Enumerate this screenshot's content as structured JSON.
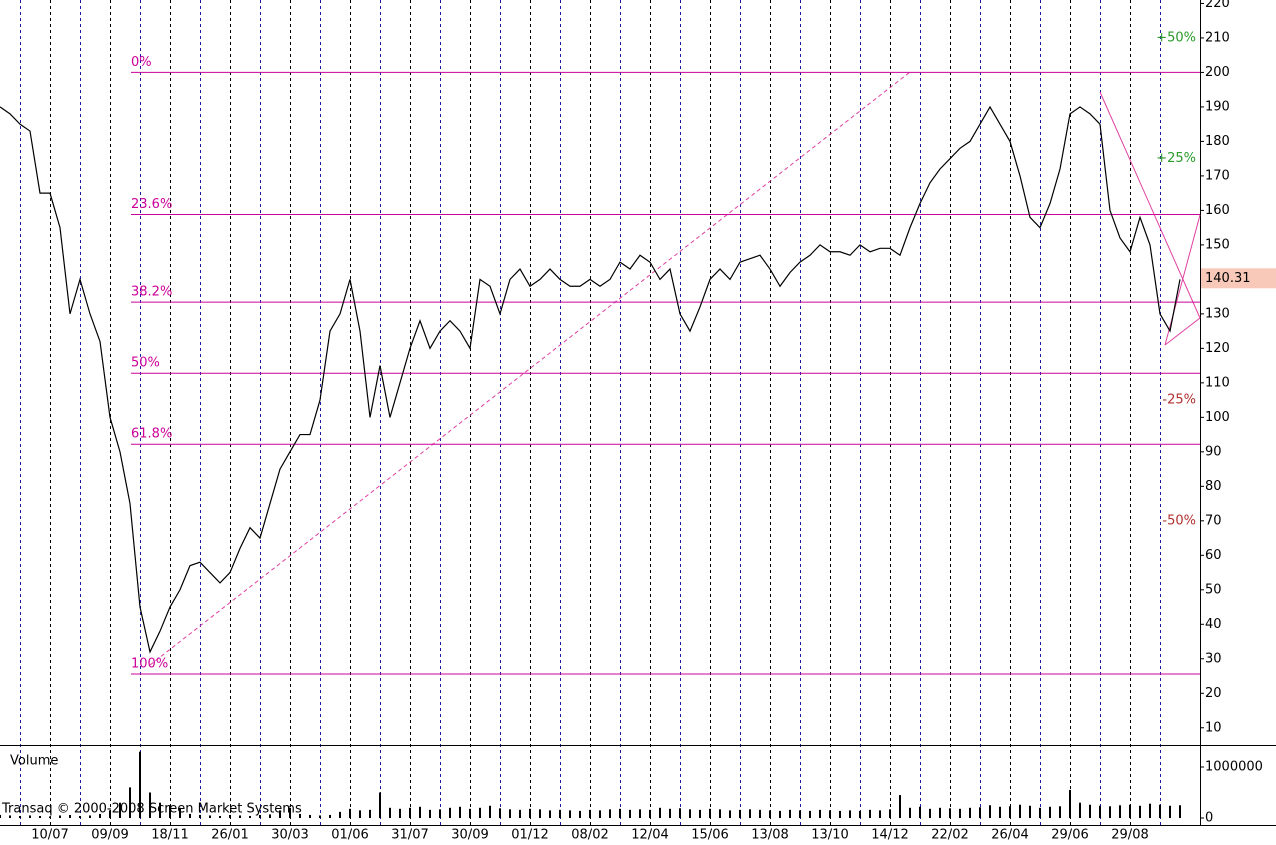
{
  "chart_data": {
    "type": "line",
    "ylim": [
      5,
      221
    ],
    "yticks": [
      10,
      20,
      30,
      40,
      50,
      60,
      70,
      80,
      90,
      100,
      110,
      120,
      130,
      140,
      150,
      160,
      170,
      180,
      190,
      200,
      210,
      220
    ],
    "categories": [
      null,
      null,
      null,
      null,
      null,
      "10/07",
      null,
      null,
      null,
      null,
      null,
      "09/09",
      null,
      null,
      null,
      null,
      null,
      "18/11",
      null,
      null,
      null,
      null,
      null,
      "26/01",
      null,
      null,
      null,
      null,
      null,
      "30/03",
      null,
      null,
      null,
      null,
      null,
      "01/06",
      null,
      null,
      null,
      null,
      null,
      "31/07",
      null,
      null,
      null,
      null,
      null,
      "30/09",
      null,
      null,
      null,
      null,
      null,
      "01/12",
      null,
      null,
      null,
      null,
      null,
      "08/02",
      null,
      null,
      null,
      null,
      null,
      "12/04",
      null,
      null,
      null,
      null,
      null,
      "15/06",
      null,
      null,
      null,
      null,
      null,
      "13/08",
      null,
      null,
      null,
      null,
      null,
      "13/10",
      null,
      null,
      null,
      null,
      null,
      "14/12",
      null,
      null,
      null,
      null,
      null,
      "22/02",
      null,
      null,
      null,
      null,
      null,
      "26/04",
      null,
      null,
      null,
      null,
      null,
      "29/06",
      null,
      null,
      null,
      null,
      null,
      "29/08",
      null,
      null,
      null,
      null,
      null
    ],
    "series": [
      {
        "color": "#000000",
        "values": [
          190,
          188,
          185,
          183,
          165,
          165,
          155,
          130,
          140,
          130,
          122,
          100,
          90,
          75,
          45,
          32,
          38,
          45,
          50,
          57,
          58,
          55,
          52,
          55,
          62,
          68,
          65,
          75,
          85,
          90,
          95,
          95,
          105,
          125,
          130,
          140,
          125,
          100,
          115,
          100,
          110,
          120,
          128,
          120,
          125,
          128,
          125,
          120,
          140,
          138,
          130,
          140,
          143,
          138,
          140,
          143,
          140,
          138,
          138,
          140,
          138,
          140,
          145,
          143,
          147,
          145,
          140,
          143,
          130,
          125,
          132,
          140,
          143,
          140,
          145,
          146,
          147,
          143,
          138,
          142,
          145,
          147,
          150,
          148,
          148,
          147,
          150,
          148,
          149,
          149,
          147,
          155,
          162,
          168,
          172,
          175,
          178,
          180,
          185,
          190,
          185,
          180,
          170,
          158,
          155,
          162,
          172,
          188,
          190,
          188,
          185,
          160,
          152,
          148,
          158,
          150,
          130,
          125,
          140
        ]
      }
    ],
    "fib_levels": [
      {
        "label": "0%",
        "value": 200
      },
      {
        "label": "23.6%",
        "value": 158.8
      },
      {
        "label": "38.2%",
        "value": 133.4
      },
      {
        "label": "50%",
        "value": 112.8
      },
      {
        "label": "61.8%",
        "value": 92.2
      },
      {
        "label": "100%",
        "value": 25.6
      }
    ],
    "fib_color": "#cc0099",
    "percent_marks": [
      {
        "label": "+50%",
        "value": 210,
        "color": "#2a9a2a"
      },
      {
        "label": "+25%",
        "value": 175,
        "color": "#2a9a2a"
      },
      {
        "label": "-25%",
        "value": 105,
        "color": "#b03030"
      },
      {
        "label": "-50%",
        "value": 70,
        "color": "#b03030"
      }
    ],
    "last_price": 140.31,
    "volume": {
      "label": "Volume",
      "ylim": [
        -137000,
        1431000
      ],
      "yticks": [
        0,
        1000000
      ],
      "values": [
        60000,
        50000,
        40000,
        50000,
        40000,
        30000,
        50000,
        60000,
        40000,
        50000,
        80000,
        150000,
        300000,
        600000,
        1300000,
        500000,
        300000,
        250000,
        200000,
        80000,
        60000,
        50000,
        40000,
        60000,
        50000,
        40000,
        60000,
        70000,
        150000,
        200000,
        80000,
        60000,
        50000,
        60000,
        120000,
        180000,
        150000,
        160000,
        500000,
        200000,
        180000,
        200000,
        220000,
        160000,
        170000,
        200000,
        220000,
        180000,
        200000,
        240000,
        190000,
        170000,
        160000,
        180000,
        170000,
        150000,
        160000,
        150000,
        140000,
        160000,
        150000,
        170000,
        180000,
        160000,
        170000,
        160000,
        200000,
        180000,
        190000,
        170000,
        160000,
        180000,
        170000,
        150000,
        160000,
        170000,
        160000,
        150000,
        140000,
        160000,
        150000,
        140000,
        160000,
        150000,
        140000,
        150000,
        140000,
        160000,
        150000,
        170000,
        450000,
        200000,
        220000,
        180000,
        200000,
        190000,
        180000,
        200000,
        210000,
        250000,
        220000,
        230000,
        260000,
        240000,
        200000,
        220000,
        230000,
        550000,
        300000,
        260000,
        240000,
        230000,
        250000,
        260000,
        240000,
        280000,
        260000,
        240000,
        250000
      ]
    },
    "watermark": "Transaq © 2000-2008 Screen Market Systems"
  }
}
